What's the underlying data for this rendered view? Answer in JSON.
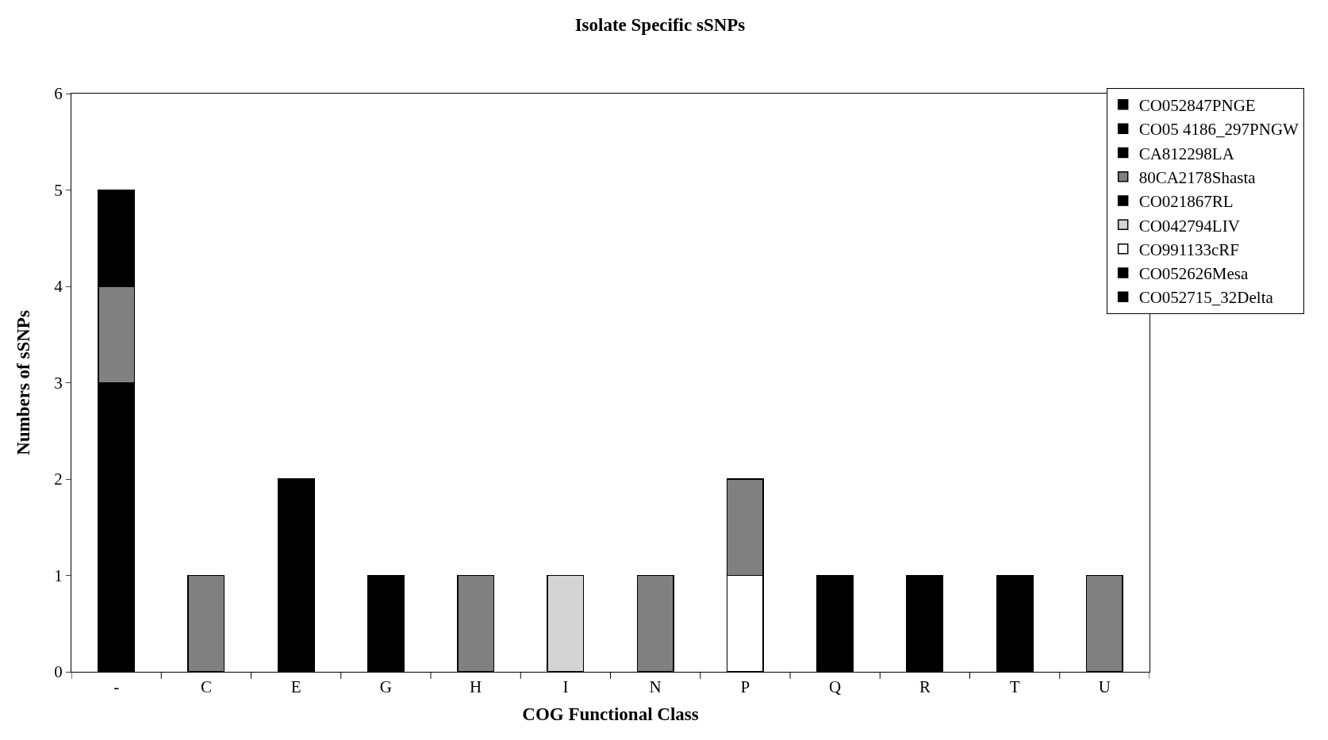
{
  "chart_data": {
    "type": "bar",
    "title": "Isolate Specific sSNPs",
    "xlabel": "COG Functional Class",
    "ylabel": "Numbers of sSNPs",
    "stacked": true,
    "legend": "top right",
    "categories": [
      "-",
      "C",
      "E",
      "G",
      "H",
      "I",
      "N",
      "P",
      "Q",
      "R",
      "T",
      "U"
    ],
    "ylim": [
      0,
      6
    ],
    "yticks": [
      0,
      1,
      2,
      3,
      4,
      5,
      6
    ],
    "series": [
      {
        "name": "CO052715_32Delta",
        "color": "#000000",
        "values": [
          1,
          null,
          null,
          null,
          null,
          null,
          null,
          null,
          null,
          1,
          null,
          null
        ]
      },
      {
        "name": "CO052626Mesa",
        "color": "#000000",
        "values": [
          1,
          null,
          null,
          null,
          null,
          null,
          null,
          null,
          1,
          null,
          null,
          null
        ]
      },
      {
        "name": "CO991133cRF",
        "color": "#ffffff",
        "values": [
          null,
          null,
          null,
          null,
          null,
          null,
          null,
          1,
          null,
          null,
          null,
          null
        ]
      },
      {
        "name": "CO042794LIV",
        "color": "#d4d4d4",
        "values": [
          null,
          null,
          null,
          null,
          null,
          1,
          null,
          null,
          null,
          null,
          null,
          null
        ]
      },
      {
        "name": "CO021867RL",
        "color": "#000000",
        "values": [
          1,
          null,
          null,
          null,
          null,
          null,
          null,
          null,
          null,
          null,
          1,
          null
        ]
      },
      {
        "name": "80CA2178Shasta",
        "color": "#808080",
        "values": [
          1,
          1,
          null,
          null,
          1,
          null,
          1,
          1,
          null,
          null,
          null,
          1
        ]
      },
      {
        "name": "CA812298LA",
        "color": "#000000",
        "values": [
          null,
          null,
          2,
          null,
          null,
          null,
          null,
          null,
          null,
          null,
          null,
          null
        ]
      },
      {
        "name": "CO05 4186_297PNGW",
        "color": "#000000",
        "values": [
          null,
          null,
          null,
          1,
          null,
          null,
          null,
          null,
          null,
          null,
          null,
          null
        ]
      },
      {
        "name": "CO052847PNGE",
        "color": "#000000",
        "values": [
          1,
          null,
          null,
          null,
          null,
          null,
          null,
          null,
          null,
          null,
          null,
          null
        ]
      }
    ]
  }
}
